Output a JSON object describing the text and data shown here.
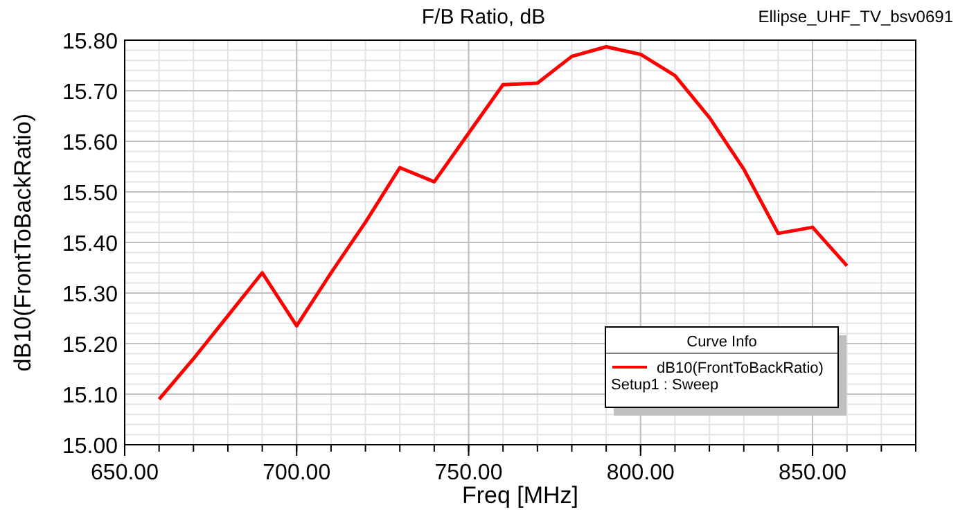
{
  "chart_data": {
    "type": "line",
    "title": "F/B Ratio, dB",
    "xlabel": "Freq [MHz]",
    "ylabel": "dB10(FrontToBackRatio)",
    "legend_title": "Curve Info",
    "annotations": [
      "Ellipse_UHF_TV_bsv0691",
      "Setup1 : Sweep"
    ],
    "x": [
      660,
      670,
      680,
      690,
      700,
      710,
      720,
      730,
      740,
      750,
      760,
      770,
      780,
      790,
      800,
      810,
      820,
      830,
      840,
      850,
      860
    ],
    "series": [
      {
        "name": "dB10(FrontToBackRatio)",
        "color": "#ff0000",
        "values": [
          15.09,
          15.17,
          15.255,
          15.34,
          15.235,
          15.34,
          15.44,
          15.548,
          15.52,
          15.616,
          15.712,
          15.715,
          15.768,
          15.787,
          15.772,
          15.73,
          15.647,
          15.545,
          15.418,
          15.43,
          15.354
        ]
      }
    ],
    "xlim": [
      650,
      880
    ],
    "ylim": [
      15.0,
      15.8
    ],
    "xticks": [
      {
        "value": 650,
        "label": "650.00"
      },
      {
        "value": 700,
        "label": "700.00"
      },
      {
        "value": 750,
        "label": "750.00"
      },
      {
        "value": 800,
        "label": "800.00"
      },
      {
        "value": 850,
        "label": "850.00"
      }
    ],
    "yticks": [
      {
        "value": 15.0,
        "label": "15.00"
      },
      {
        "value": 15.1,
        "label": "15.10"
      },
      {
        "value": 15.2,
        "label": "15.20"
      },
      {
        "value": 15.3,
        "label": "15.30"
      },
      {
        "value": 15.4,
        "label": "15.40"
      },
      {
        "value": 15.5,
        "label": "15.50"
      },
      {
        "value": 15.6,
        "label": "15.60"
      },
      {
        "value": 15.7,
        "label": "15.70"
      },
      {
        "value": 15.8,
        "label": "15.80"
      }
    ],
    "grid": true,
    "legend": "bottom right",
    "line_style": "solid",
    "marker": "none"
  }
}
